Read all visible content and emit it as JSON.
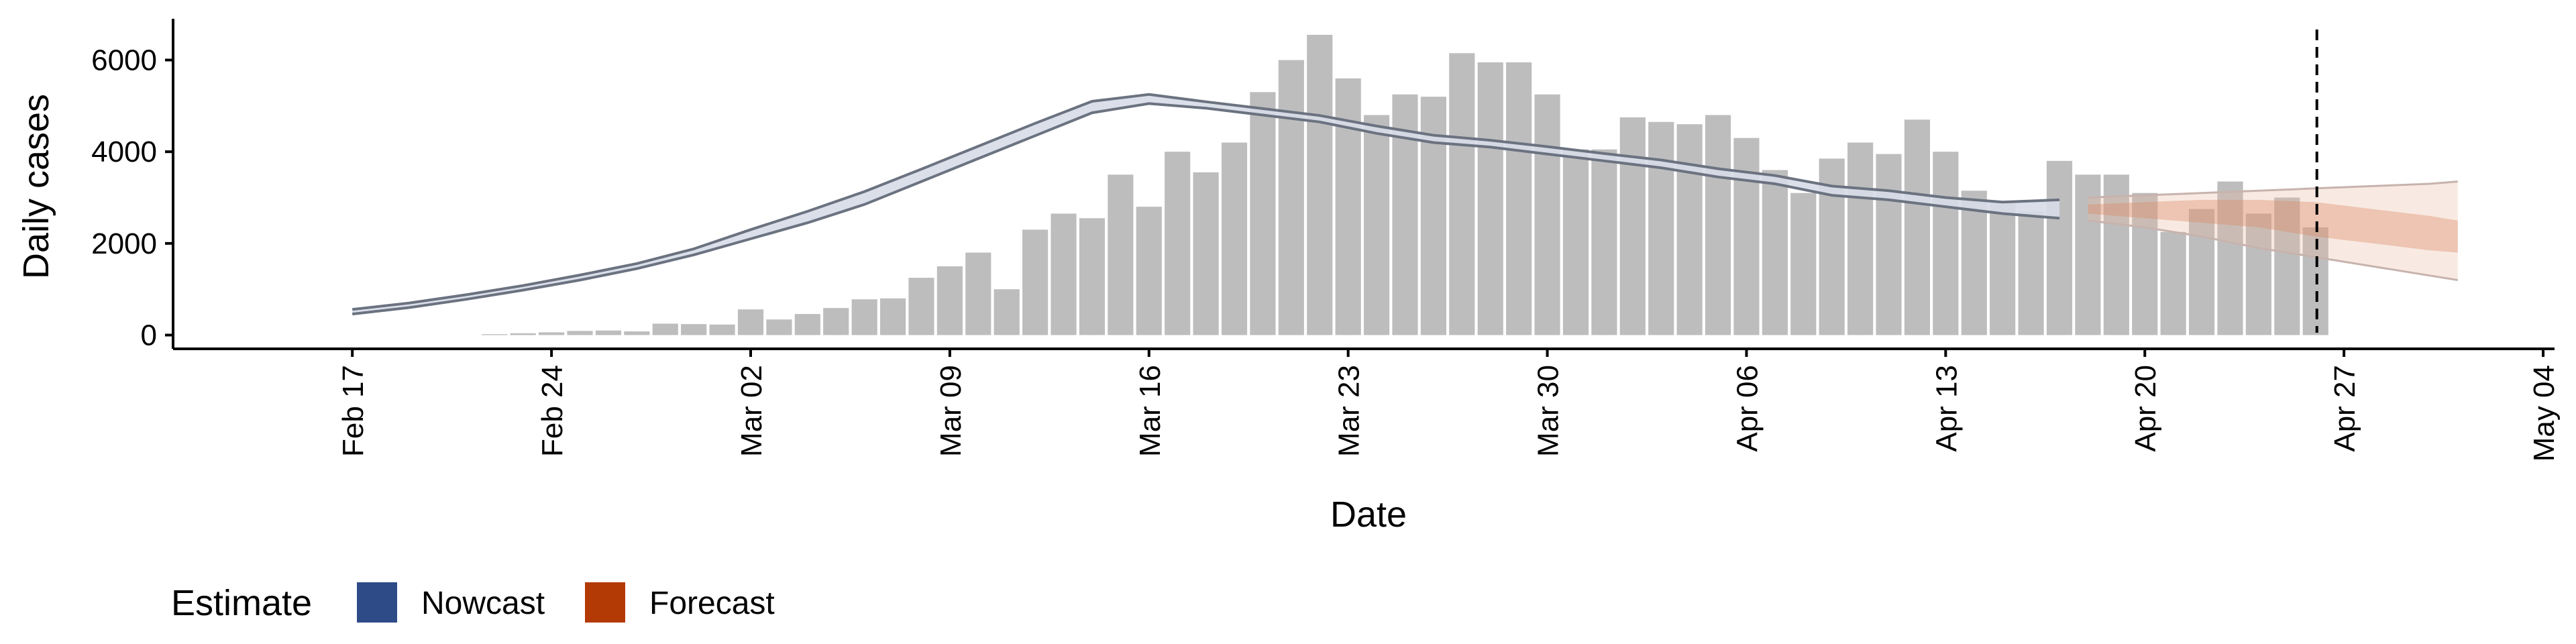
{
  "chart_data": {
    "type": "bar",
    "xlabel": "Date",
    "ylabel": "Daily cases",
    "x_axis": {
      "type": "date",
      "range": [
        "2020-02-17",
        "2020-05-04"
      ],
      "ticks": [
        "2020-02-17",
        "2020-02-24",
        "2020-03-02",
        "2020-03-09",
        "2020-03-16",
        "2020-03-23",
        "2020-03-30",
        "2020-04-06",
        "2020-04-13",
        "2020-04-20",
        "2020-04-27",
        "2020-05-04"
      ],
      "tick_labels": [
        "Feb 17",
        "Feb 24",
        "Mar 02",
        "Mar 09",
        "Mar 16",
        "Mar 23",
        "Mar 30",
        "Apr 06",
        "Apr 13",
        "Apr 20",
        "Apr 27",
        "May 04"
      ]
    },
    "y_axis": {
      "ylim": [
        -300,
        6900
      ],
      "ticks": [
        0,
        2000,
        4000,
        6000
      ],
      "tick_labels": [
        "0",
        "2000",
        "4000",
        "6000"
      ]
    },
    "grid": false,
    "legend": {
      "position": "bottom-left",
      "title": "Estimate",
      "items": [
        {
          "label": "Nowcast",
          "color": "#2e4a87"
        },
        {
          "label": "Forecast",
          "color": "#b33a05"
        }
      ]
    },
    "colors": {
      "bars": "#bdbdbd",
      "nowcast": "#2e4a87",
      "forecast": "#b33a05",
      "ref_line": "#000000"
    },
    "series": [
      {
        "name": "Daily cases",
        "type": "bar",
        "dates": [
          "2020-02-22",
          "2020-02-23",
          "2020-02-24",
          "2020-02-25",
          "2020-02-26",
          "2020-02-27",
          "2020-02-28",
          "2020-02-29",
          "2020-03-01",
          "2020-03-02",
          "2020-03-03",
          "2020-03-04",
          "2020-03-05",
          "2020-03-06",
          "2020-03-07",
          "2020-03-08",
          "2020-03-09",
          "2020-03-10",
          "2020-03-11",
          "2020-03-12",
          "2020-03-13",
          "2020-03-14",
          "2020-03-15",
          "2020-03-16",
          "2020-03-17",
          "2020-03-18",
          "2020-03-19",
          "2020-03-20",
          "2020-03-21",
          "2020-03-22",
          "2020-03-23",
          "2020-03-24",
          "2020-03-25",
          "2020-03-26",
          "2020-03-27",
          "2020-03-28",
          "2020-03-29",
          "2020-03-30",
          "2020-03-31",
          "2020-04-01",
          "2020-04-02",
          "2020-04-03",
          "2020-04-04",
          "2020-04-05",
          "2020-04-06",
          "2020-04-07",
          "2020-04-08",
          "2020-04-09",
          "2020-04-10",
          "2020-04-11",
          "2020-04-12",
          "2020-04-13",
          "2020-04-14",
          "2020-04-15",
          "2020-04-16",
          "2020-04-17",
          "2020-04-18",
          "2020-04-19",
          "2020-04-20",
          "2020-04-21",
          "2020-04-22",
          "2020-04-23",
          "2020-04-24",
          "2020-04-25",
          "2020-04-26"
        ],
        "values": [
          20,
          40,
          60,
          90,
          100,
          80,
          250,
          240,
          230,
          560,
          340,
          460,
          590,
          780,
          800,
          1250,
          1500,
          1800,
          1000,
          2300,
          2650,
          2550,
          3500,
          2800,
          4000,
          3550,
          4200,
          5300,
          6000,
          6550,
          5600,
          4800,
          5250,
          5200,
          6150,
          5950,
          5950,
          5250,
          4050,
          4050,
          4750,
          4650,
          4600,
          4800,
          4300,
          3600,
          3100,
          3850,
          4200,
          3950,
          4700,
          4000,
          3150,
          2900,
          2700,
          3800,
          3500,
          3500,
          3100,
          2250,
          2750,
          3350,
          2650,
          3000,
          2350
        ]
      },
      {
        "name": "Nowcast",
        "type": "band",
        "dates": [
          "2020-02-17",
          "2020-02-19",
          "2020-02-21",
          "2020-02-23",
          "2020-02-25",
          "2020-02-27",
          "2020-02-29",
          "2020-03-02",
          "2020-03-04",
          "2020-03-06",
          "2020-03-08",
          "2020-03-10",
          "2020-03-12",
          "2020-03-14",
          "2020-03-16",
          "2020-03-18",
          "2020-03-20",
          "2020-03-22",
          "2020-03-24",
          "2020-03-26",
          "2020-03-28",
          "2020-03-30",
          "2020-04-01",
          "2020-04-03",
          "2020-04-05",
          "2020-04-07",
          "2020-04-09",
          "2020-04-11",
          "2020-04-13",
          "2020-04-15",
          "2020-04-17"
        ],
        "lower": [
          460,
          600,
          780,
          980,
          1200,
          1450,
          1750,
          2100,
          2450,
          2850,
          3350,
          3850,
          4350,
          4850,
          5050,
          4950,
          4800,
          4650,
          4400,
          4200,
          4100,
          3950,
          3800,
          3650,
          3450,
          3300,
          3050,
          2950,
          2800,
          2650,
          2550
        ],
        "upper": [
          560,
          700,
          880,
          1080,
          1310,
          1560,
          1880,
          2300,
          2700,
          3130,
          3620,
          4120,
          4620,
          5100,
          5250,
          5090,
          4940,
          4790,
          4560,
          4360,
          4250,
          4110,
          3960,
          3820,
          3630,
          3480,
          3250,
          3150,
          3000,
          2900,
          2950
        ]
      },
      {
        "name": "Forecast",
        "type": "band",
        "dates": [
          "2020-04-18",
          "2020-04-20",
          "2020-04-22",
          "2020-04-24",
          "2020-04-26",
          "2020-04-28",
          "2020-04-30",
          "2020-05-01"
        ],
        "lower": [
          2500,
          2350,
          2150,
          1900,
          1700,
          1500,
          1300,
          1200
        ],
        "upper": [
          3000,
          3050,
          3100,
          3150,
          3200,
          3250,
          3300,
          3350
        ],
        "inner_lower": [
          2650,
          2550,
          2450,
          2350,
          2150,
          2000,
          1850,
          1800
        ],
        "inner_upper": [
          2850,
          2900,
          2950,
          2950,
          2900,
          2750,
          2600,
          2500
        ]
      }
    ],
    "reference_line": {
      "date": "2020-04-26",
      "style": "dashed"
    }
  }
}
